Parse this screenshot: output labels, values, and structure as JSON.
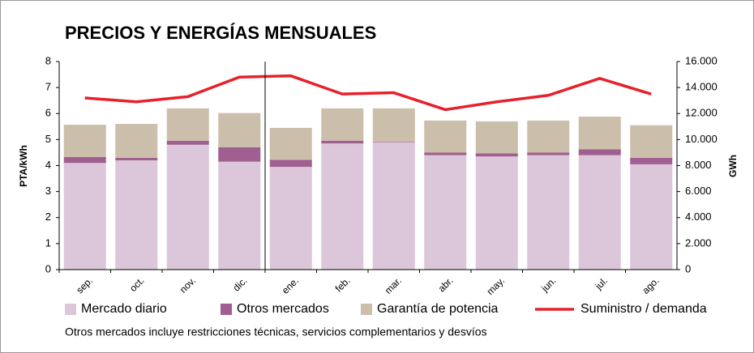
{
  "chart_data": {
    "type": "bar",
    "title": "PRECIOS Y ENERGÍAS MENSUALES",
    "ylabel": "PTA/kWh",
    "y2label": "GWh",
    "note": "Otros mercados incluye restricciones técnicas, servicios complementarios y desvíos",
    "categories": [
      "sep.",
      "oct.",
      "nov.",
      "dic.",
      "ene.",
      "feb.",
      "mar.",
      "abr.",
      "may.",
      "jun.",
      "jul.",
      "ago."
    ],
    "stacked": true,
    "series": [
      {
        "name": "Mercado diario",
        "color": "#dcc6d9",
        "values": [
          4.1,
          4.2,
          4.8,
          4.15,
          3.95,
          4.85,
          4.9,
          4.4,
          4.35,
          4.4,
          4.4,
          4.05
        ]
      },
      {
        "name": "Otros mercados",
        "color": "#a15e90",
        "values": [
          0.23,
          0.1,
          0.15,
          0.55,
          0.27,
          0.1,
          0.02,
          0.1,
          0.12,
          0.1,
          0.23,
          0.25
        ]
      },
      {
        "name": "Garantía de potencia",
        "color": "#cbbfab",
        "values": [
          1.24,
          1.3,
          1.25,
          1.32,
          1.23,
          1.25,
          1.28,
          1.23,
          1.23,
          1.23,
          1.25,
          1.25
        ]
      },
      {
        "name": "Suministro / demanda",
        "color": "#e8202a",
        "type": "line",
        "axis": "y2",
        "values": [
          13200,
          12900,
          13300,
          14800,
          14900,
          13500,
          13600,
          12300,
          12900,
          13400,
          14700,
          13500
        ]
      }
    ],
    "ylim": [
      0,
      8
    ],
    "yticks": [
      0,
      1,
      2,
      3,
      4,
      5,
      6,
      7,
      8
    ],
    "y2lim": [
      0,
      16000
    ],
    "y2ticks": [
      0,
      {
        "value": 2000,
        "label": "2.000"
      },
      {
        "value": 4000,
        "label": "4.000"
      },
      {
        "value": 6000,
        "label": "6.000"
      },
      {
        "value": 8000,
        "label": "8.000"
      },
      {
        "value": 10000,
        "label": "10.000"
      },
      {
        "value": 12000,
        "label": "12.000"
      },
      {
        "value": 14000,
        "label": "14.000"
      },
      {
        "value": 16000,
        "label": "16.000"
      }
    ],
    "grid": false,
    "legend": "bottom"
  }
}
